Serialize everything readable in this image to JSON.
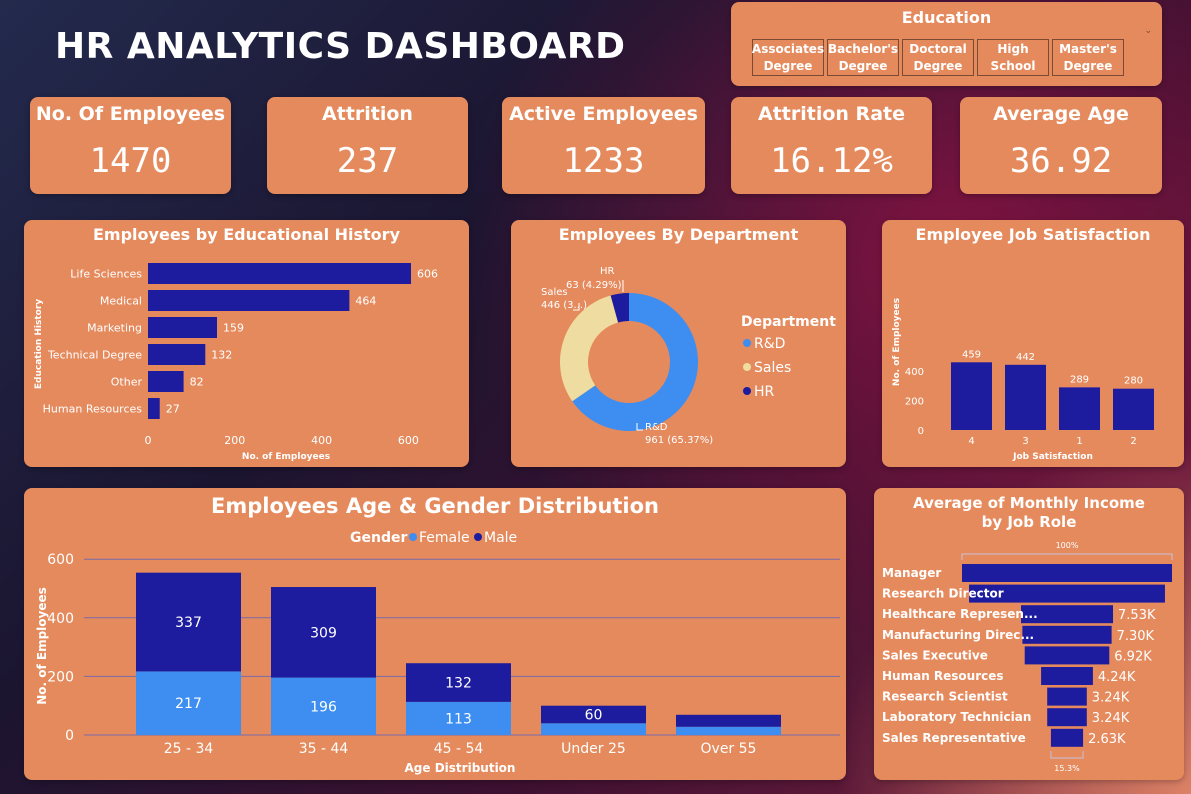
{
  "header": {
    "title": "HR ANALYTICS DASHBOARD"
  },
  "education_slicer": {
    "title": "Education",
    "options": [
      "Associates\nDegree",
      "Bachelor's\nDegree",
      "Doctoral\nDegree",
      "High\nSchool",
      "Master's\nDegree"
    ]
  },
  "kpis": [
    {
      "label": "No. Of Employees",
      "value": "1470"
    },
    {
      "label": "Attrition",
      "value": "237"
    },
    {
      "label": "Active Employees",
      "value": "1233"
    },
    {
      "label": "Attrition Rate",
      "value": "16.12%"
    },
    {
      "label": "Average Age",
      "value": "36.92"
    }
  ],
  "colors": {
    "card": "#e58a5d",
    "bar": "#1e1c9e",
    "female": "#3d8ef0",
    "sales": "#efdca0",
    "grid": "#7a6aa8",
    "white": "#ffffff"
  },
  "chart_data": [
    {
      "id": "education_history",
      "type": "bar",
      "orientation": "horizontal",
      "title": "Employees by Educational History",
      "xlabel": "No. of Employees",
      "ylabel": "Education History",
      "categories": [
        "Life Sciences",
        "Medical",
        "Marketing",
        "Technical Degree",
        "Other",
        "Human Resources"
      ],
      "values": [
        606,
        464,
        159,
        132,
        82,
        27
      ],
      "xlim": [
        0,
        650
      ],
      "xticks": [
        0,
        200,
        400,
        600
      ]
    },
    {
      "id": "department",
      "type": "pie",
      "donut": true,
      "title": "Employees By Department",
      "legend_title": "Department",
      "legend_position": "right",
      "slices": [
        {
          "name": "R&D",
          "value": 961,
          "percent": 65.37,
          "label": "961 (65.37%)",
          "color": "#3d8ef0"
        },
        {
          "name": "Sales",
          "value": 446,
          "percent": 30.34,
          "label": "446 (3...)",
          "color": "#efdca0"
        },
        {
          "name": "HR",
          "value": 63,
          "percent": 4.29,
          "label": "63 (4.29%)",
          "color": "#1e1c9e"
        }
      ]
    },
    {
      "id": "job_satisfaction",
      "type": "bar",
      "title": "Employee Job Satisfaction",
      "xlabel": "Job Satisfaction",
      "ylabel": "No. of Employees",
      "categories": [
        "4",
        "3",
        "1",
        "2"
      ],
      "values": [
        459,
        442,
        289,
        280
      ],
      "ylim": [
        0,
        480
      ],
      "yticks": [
        0,
        200,
        400
      ]
    },
    {
      "id": "age_gender",
      "type": "bar",
      "stacked": true,
      "title": "Employees Age & Gender Distribution",
      "legend_title": "Gender",
      "legend_position": "top",
      "xlabel": "Age Distribution",
      "ylabel": "No. of Employees",
      "categories": [
        "25 - 34",
        "35 - 44",
        "45 - 54",
        "Under 25",
        "Over 55"
      ],
      "series": [
        {
          "name": "Female",
          "values": [
            217,
            196,
            113,
            40,
            28
          ],
          "labels": [
            "217",
            "196",
            "113",
            "",
            ""
          ],
          "color": "#3d8ef0"
        },
        {
          "name": "Male",
          "values": [
            337,
            309,
            132,
            60,
            41
          ],
          "labels": [
            "337",
            "309",
            "132",
            "60",
            ""
          ],
          "color": "#1e1c9e"
        }
      ],
      "ylim": [
        0,
        620
      ],
      "yticks": [
        0,
        200,
        400,
        600
      ],
      "grid": true
    },
    {
      "id": "monthly_income",
      "type": "bar",
      "style": "funnel",
      "title": "Average of Monthly Income by Job Role",
      "top_label": "100%",
      "bottom_label": "15.3%",
      "categories": [
        "Manager",
        "Research Director",
        "Healthcare Represen...",
        "Manufacturing Direc...",
        "Sales Executive",
        "Human Resources",
        "Research Scientist",
        "Laboratory Technician",
        "Sales Representative"
      ],
      "values": [
        17180,
        16030,
        7530,
        7300,
        6920,
        4240,
        3240,
        3240,
        2630
      ],
      "value_labels": [
        "",
        "",
        "7.53K",
        "7.30K",
        "6.92K",
        "4.24K",
        "3.24K",
        "3.24K",
        "2.63K"
      ]
    }
  ]
}
